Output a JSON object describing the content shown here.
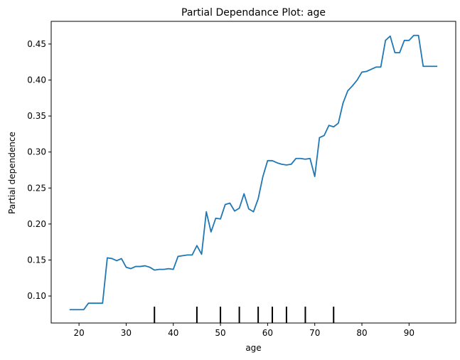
{
  "chart_data": {
    "type": "line",
    "title": "Partial Dependance Plot: age",
    "xlabel": "age",
    "ylabel": "Partial dependence",
    "xlim": [
      14.1,
      99.9
    ],
    "ylim": [
      0.0625,
      0.4815
    ],
    "xticks": [
      20,
      30,
      40,
      50,
      60,
      70,
      80,
      90
    ],
    "xtick_labels": [
      "20",
      "30",
      "40",
      "50",
      "60",
      "70",
      "80",
      "90"
    ],
    "yticks": [
      0.1,
      0.15,
      0.2,
      0.25,
      0.3,
      0.35,
      0.4,
      0.45
    ],
    "ytick_labels": [
      "0.10",
      "0.15",
      "0.20",
      "0.25",
      "0.30",
      "0.35",
      "0.40",
      "0.45"
    ],
    "grid": false,
    "line_color": "#1f77b4",
    "series": [
      {
        "x": [
          18,
          19,
          20,
          21,
          22,
          23,
          24,
          25,
          26,
          27,
          28,
          29,
          30,
          31,
          32,
          33,
          34,
          35,
          36,
          37,
          38,
          39,
          40,
          41,
          42,
          43,
          44,
          45,
          46,
          47,
          48,
          49,
          50,
          51,
          52,
          53,
          54,
          55,
          56,
          57,
          58,
          59,
          60,
          61,
          62,
          63,
          64,
          65,
          66,
          67,
          68,
          69,
          70,
          71,
          72,
          73,
          74,
          75,
          76,
          77,
          78,
          79,
          80,
          81,
          82,
          83,
          84,
          85,
          86,
          87,
          88,
          89,
          90,
          91,
          92,
          93,
          94,
          95,
          96
        ],
        "y": [
          0.081,
          0.081,
          0.081,
          0.081,
          0.09,
          0.09,
          0.09,
          0.09,
          0.153,
          0.152,
          0.149,
          0.152,
          0.14,
          0.138,
          0.141,
          0.141,
          0.142,
          0.14,
          0.136,
          0.137,
          0.137,
          0.138,
          0.137,
          0.155,
          0.156,
          0.157,
          0.157,
          0.17,
          0.158,
          0.217,
          0.189,
          0.208,
          0.207,
          0.227,
          0.229,
          0.218,
          0.222,
          0.242,
          0.221,
          0.217,
          0.235,
          0.266,
          0.288,
          0.288,
          0.285,
          0.283,
          0.282,
          0.283,
          0.291,
          0.291,
          0.29,
          0.291,
          0.266,
          0.32,
          0.323,
          0.337,
          0.335,
          0.34,
          0.368,
          0.385,
          0.392,
          0.4,
          0.411,
          0.412,
          0.415,
          0.418,
          0.418,
          0.455,
          0.461,
          0.438,
          0.438,
          0.455,
          0.455,
          0.462,
          0.462,
          0.419,
          0.419,
          0.419,
          0.419
        ]
      }
    ],
    "rug_x": [
      36,
      45,
      50,
      54,
      58,
      61,
      64,
      68,
      74
    ]
  }
}
